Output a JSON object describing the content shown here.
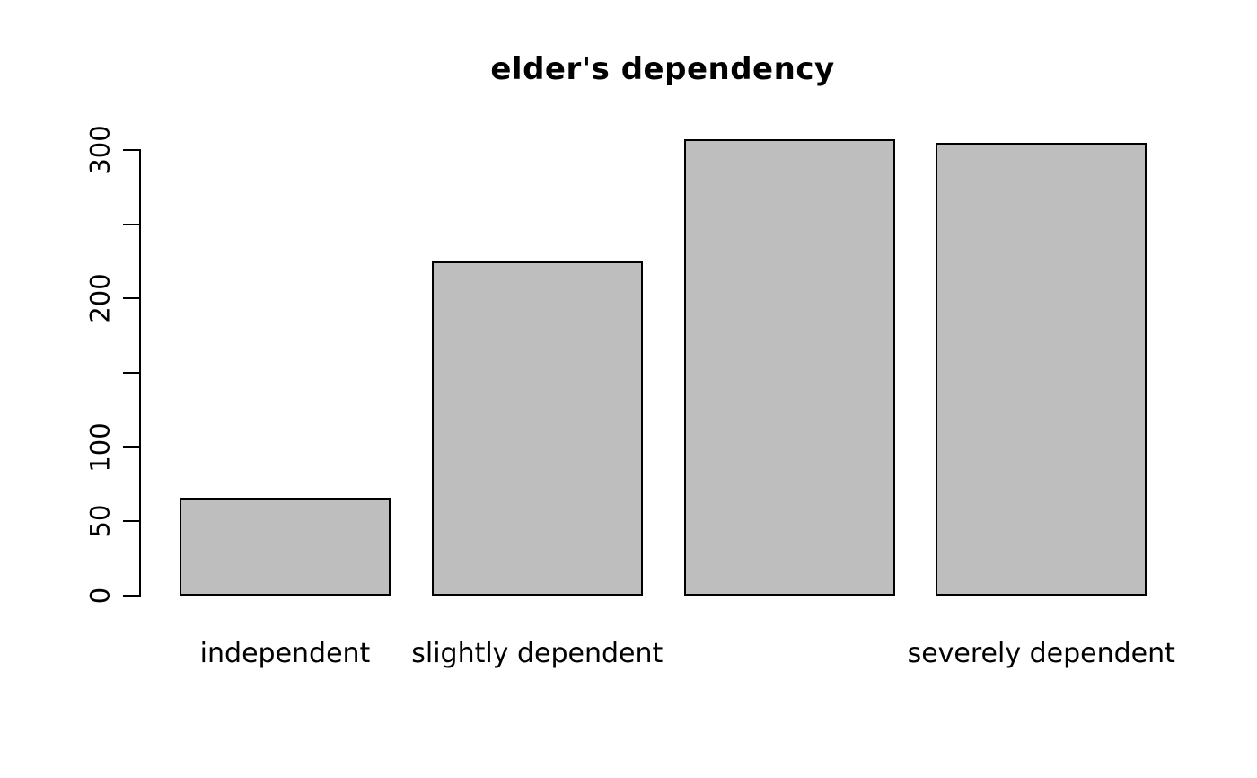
{
  "chart_data": {
    "type": "bar",
    "title": "elder's dependency",
    "categories": [
      "independent",
      "slightly dependent",
      "",
      "severely dependent"
    ],
    "values": [
      66,
      225,
      307,
      305
    ],
    "xlabel": "",
    "ylabel": "",
    "ylim": [
      0,
      300
    ],
    "y_ticks": [
      0,
      50,
      100,
      150,
      200,
      250,
      300
    ],
    "y_tick_labels": [
      "0",
      "50",
      "100",
      "",
      "200",
      "",
      "300"
    ],
    "bar_fill": "#bebebe",
    "bar_border": "#000000",
    "text_color": "#000000",
    "background": "#ffffff",
    "grid": false,
    "legend": false
  }
}
